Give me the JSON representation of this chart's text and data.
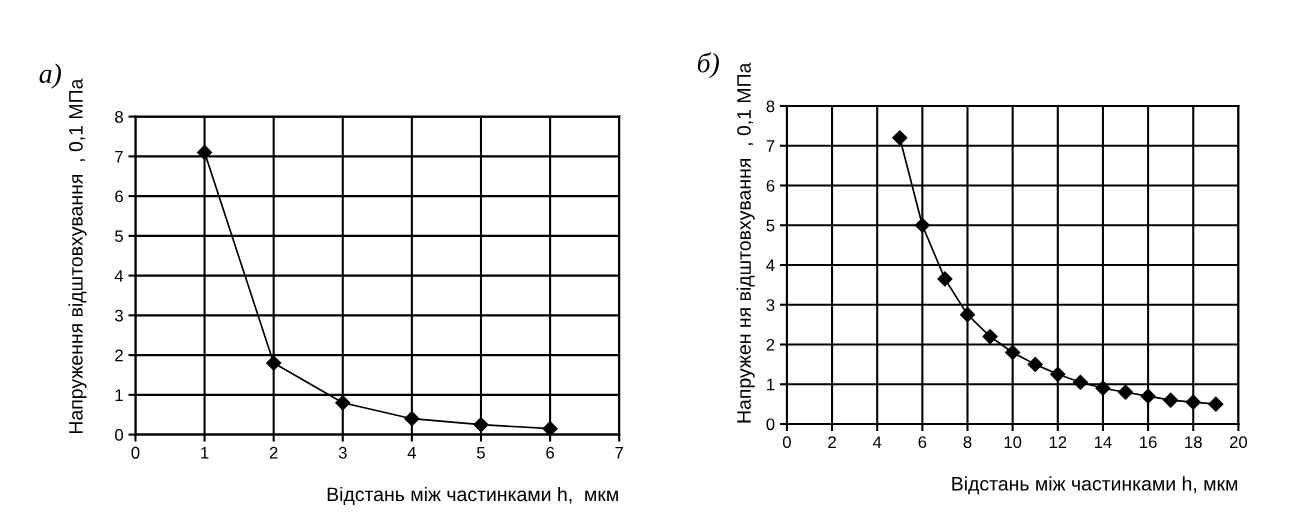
{
  "chart_data": [
    {
      "type": "line",
      "title": "а)",
      "xlabel": "Відстань між частинками h,  мкм",
      "ylabel": "Напруження відштовхування  , 0,1 МПа",
      "x": [
        1,
        2,
        3,
        4,
        5,
        6
      ],
      "series": [
        {
          "color": "#000000",
          "values": [
            7.1,
            1.8,
            0.8,
            0.4,
            0.25,
            0.15
          ]
        }
      ],
      "xlim": [
        0,
        7
      ],
      "xticks": [
        0,
        1,
        2,
        3,
        4,
        5,
        6,
        7
      ],
      "ylim": [
        0,
        8
      ],
      "yticks": [
        0,
        1,
        2,
        3,
        4,
        5,
        6,
        7,
        8
      ],
      "grid": true,
      "marker": "diamond",
      "line_style": "solid",
      "legend": false
    },
    {
      "type": "line",
      "title": "б)",
      "xlabel": "Відстань між частинками h, мкм",
      "ylabel": "Напружен ня відштовхування  , 0,1 МПа",
      "x": [
        5,
        6,
        7,
        8,
        9,
        10,
        11,
        12,
        13,
        14,
        15,
        16,
        17,
        18,
        19
      ],
      "series": [
        {
          "color": "#000000",
          "values": [
            7.2,
            5.0,
            3.65,
            2.75,
            2.2,
            1.8,
            1.5,
            1.25,
            1.05,
            0.9,
            0.8,
            0.7,
            0.6,
            0.55,
            0.5
          ]
        }
      ],
      "xlim": [
        0,
        20
      ],
      "xticks": [
        0,
        2,
        4,
        6,
        8,
        10,
        12,
        14,
        16,
        18,
        20
      ],
      "ylim": [
        0,
        8
      ],
      "yticks": [
        0,
        1,
        2,
        3,
        4,
        5,
        6,
        7,
        8
      ],
      "grid": true,
      "marker": "diamond",
      "line_style": "solid",
      "legend": false
    }
  ]
}
